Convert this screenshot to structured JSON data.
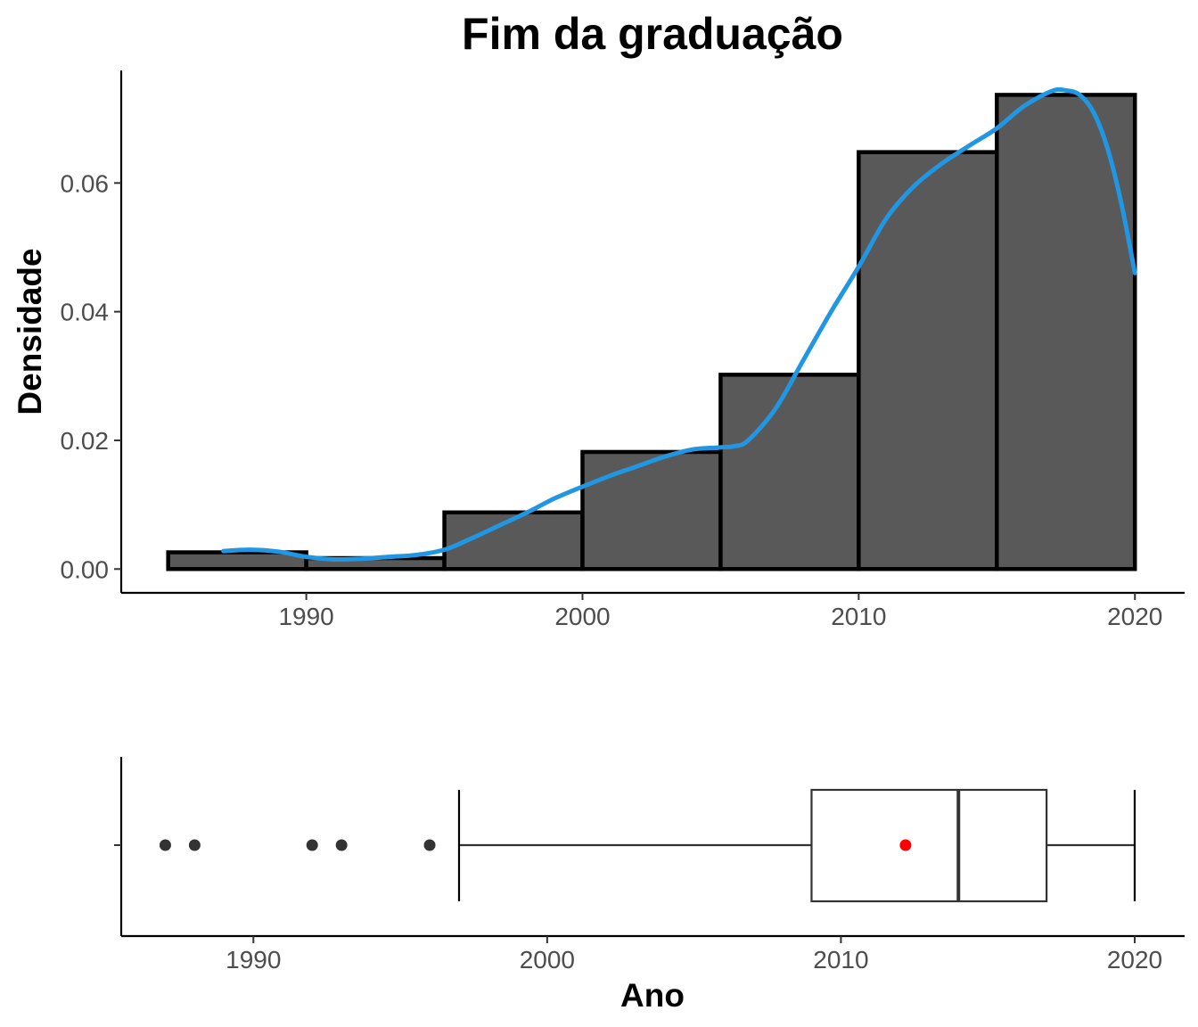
{
  "chart_data": [
    {
      "type": "histogram",
      "title": "Fim da graduação",
      "xlabel": "",
      "ylabel": "Densidade",
      "xlim": [
        1983.3,
        2021.8
      ],
      "ylim": [
        -0.0037,
        0.0775
      ],
      "x_ticks": [
        1990,
        2000,
        2010,
        2020
      ],
      "x_tick_labels": [
        "1990",
        "2000",
        "2010",
        "2020"
      ],
      "y_ticks": [
        0.0,
        0.02,
        0.04,
        0.06
      ],
      "y_tick_labels": [
        "0.00",
        "0.02",
        "0.04",
        "0.06"
      ],
      "grid": false,
      "bins": [
        {
          "start": 1985,
          "end": 1990,
          "density": 0.0026
        },
        {
          "start": 1990,
          "end": 1995,
          "density": 0.0017
        },
        {
          "start": 1995,
          "end": 2000,
          "density": 0.0088
        },
        {
          "start": 2000,
          "end": 2005,
          "density": 0.0182
        },
        {
          "start": 2005,
          "end": 2010,
          "density": 0.0302
        },
        {
          "start": 2010,
          "end": 2015,
          "density": 0.0648
        },
        {
          "start": 2015,
          "end": 2020,
          "density": 0.0737
        }
      ],
      "density_curve": {
        "color": "#2196e3",
        "x": [
          1987,
          1988,
          1989,
          1990,
          1991,
          1992,
          1993,
          1994,
          1995,
          1996,
          1997,
          1998,
          1999,
          2000,
          2001,
          2002,
          2003,
          2004,
          2005,
          2005.5,
          2006,
          2007,
          2008,
          2009,
          2010,
          2011,
          2012,
          2013,
          2014,
          2015,
          2016,
          2017,
          2017.5,
          2018,
          2018.5,
          2019,
          2019.5,
          2020
        ],
        "y": [
          0.0028,
          0.003,
          0.0027,
          0.0019,
          0.0015,
          0.0016,
          0.0019,
          0.0022,
          0.003,
          0.0048,
          0.0068,
          0.0088,
          0.011,
          0.0128,
          0.0145,
          0.016,
          0.0175,
          0.0186,
          0.0189,
          0.0191,
          0.02,
          0.025,
          0.0325,
          0.04,
          0.047,
          0.0545,
          0.0595,
          0.063,
          0.0658,
          0.0685,
          0.072,
          0.0743,
          0.0744,
          0.0737,
          0.071,
          0.0655,
          0.057,
          0.046
        ]
      }
    },
    {
      "type": "boxplot",
      "xlabel": "Ano",
      "ylabel": "",
      "xlim": [
        1985.5,
        2021.7
      ],
      "x_ticks": [
        1990,
        2000,
        2010,
        2020
      ],
      "x_tick_labels": [
        "1990",
        "2000",
        "2010",
        "2020"
      ],
      "grid": false,
      "min": 1997,
      "q1": 2009,
      "median": 2014,
      "q3": 2017,
      "max": 2020,
      "mean": 2012.2,
      "mean_color": "#ff0000",
      "outliers": [
        1987,
        1988,
        1992,
        1993,
        1996
      ]
    }
  ]
}
